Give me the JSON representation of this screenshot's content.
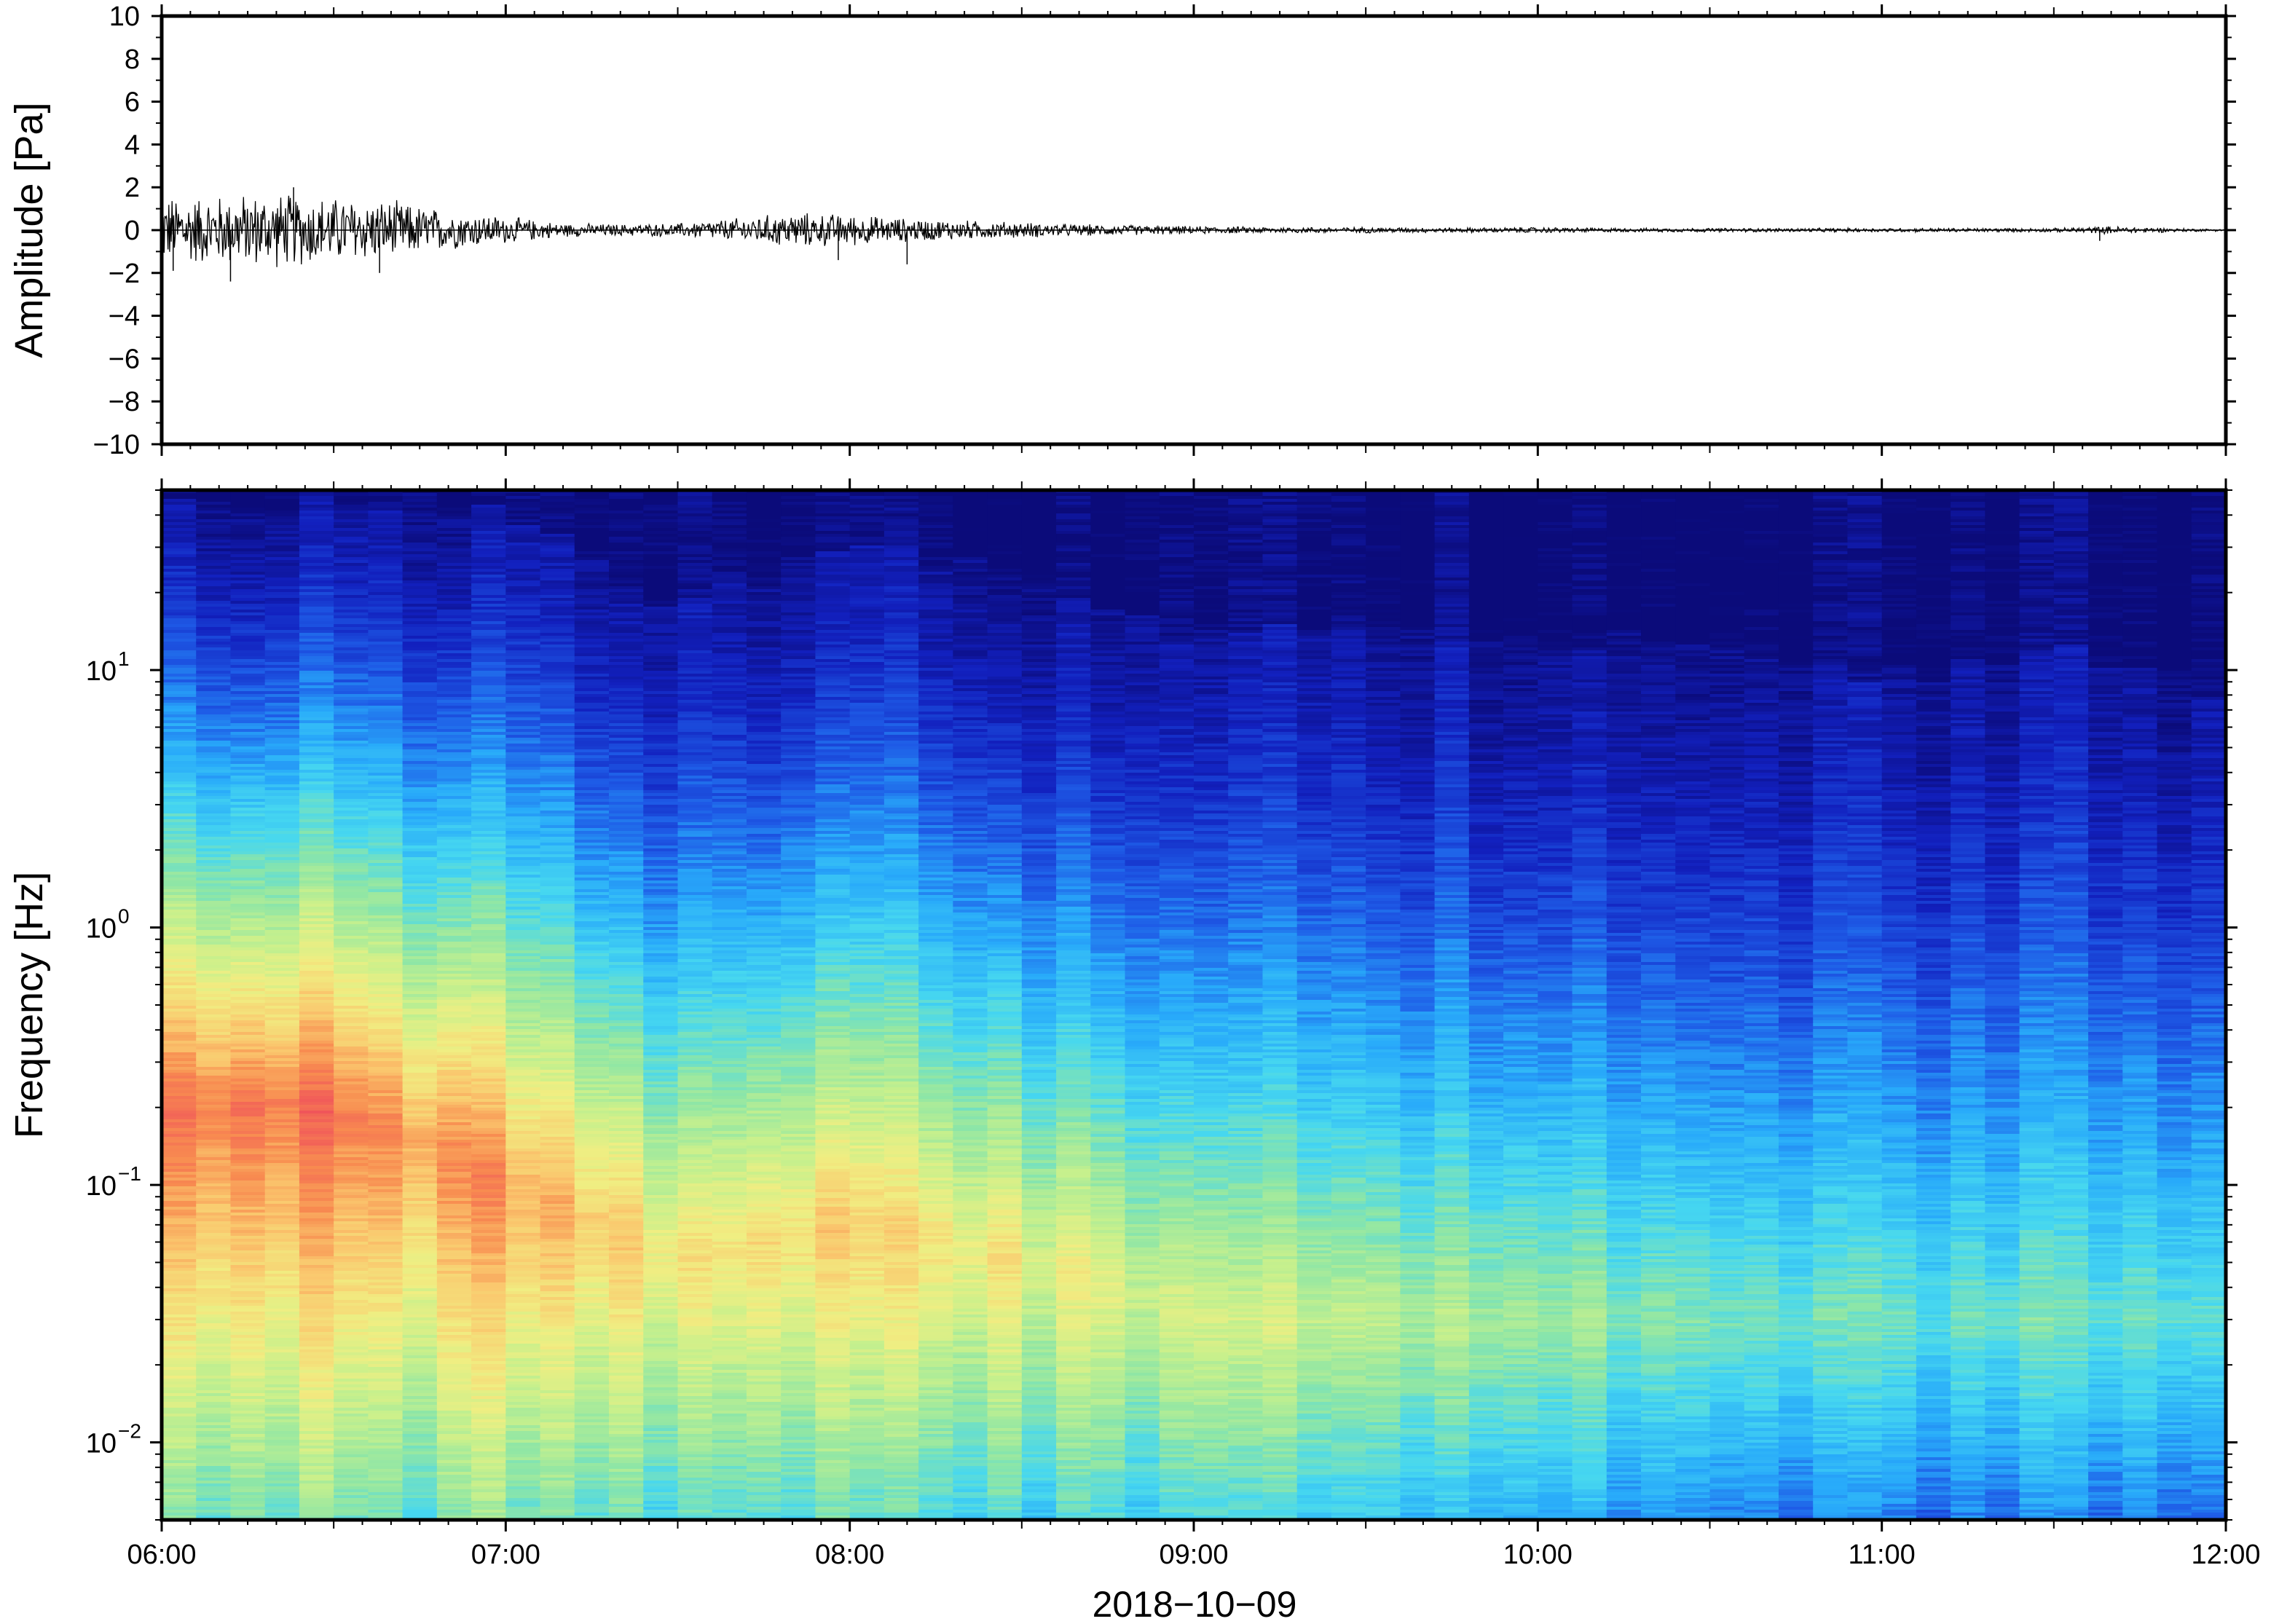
{
  "chart_data": [
    {
      "type": "line",
      "ylabel": "Amplitude [Pa]",
      "ylim": [
        -10,
        10
      ],
      "yticks": [
        "10",
        "8",
        "6",
        "4",
        "2",
        "0",
        "−2",
        "−4",
        "−6",
        "−8",
        "−10"
      ],
      "ytick_values": [
        10,
        8,
        6,
        4,
        2,
        0,
        -2,
        -4,
        -6,
        -8,
        -10
      ],
      "xlim": [
        "06:00",
        "12:00"
      ],
      "grid": false,
      "series": [
        {
          "envelope": {
            "x": [
              "06:00",
              "06:10",
              "06:20",
              "06:30",
              "06:40",
              "06:50",
              "07:00",
              "07:10",
              "07:20",
              "07:30",
              "07:40",
              "07:50",
              "08:00",
              "08:10",
              "08:20",
              "08:30",
              "08:40",
              "08:50",
              "09:00",
              "09:15",
              "09:30",
              "09:45",
              "10:00",
              "10:15",
              "10:30",
              "10:45",
              "11:00",
              "11:15",
              "11:30",
              "11:40",
              "11:50",
              "12:00"
            ],
            "amplitude_pa": [
              1.7,
              1.8,
              1.9,
              1.7,
              1.5,
              1.0,
              0.7,
              0.35,
              0.3,
              0.35,
              0.6,
              0.9,
              0.8,
              0.6,
              0.5,
              0.4,
              0.3,
              0.25,
              0.2,
              0.15,
              0.15,
              0.12,
              0.15,
              0.1,
              0.1,
              0.1,
              0.1,
              0.1,
              0.1,
              0.2,
              0.1,
              0.05
            ]
          },
          "peaks": [
            {
              "x": "06:02",
              "y": -1.9
            },
            {
              "x": "06:12",
              "y": -2.4
            },
            {
              "x": "06:23",
              "y": 2.0
            },
            {
              "x": "06:38",
              "y": -2.0
            },
            {
              "x": "07:58",
              "y": -1.4
            },
            {
              "x": "08:10",
              "y": -1.6
            },
            {
              "x": "11:38",
              "y": -0.5
            }
          ]
        }
      ]
    },
    {
      "type": "heatmap",
      "ylabel": "Frequency [Hz]",
      "xlabel": "2018−10−09",
      "y_scale": "log",
      "ylim_hz": [
        0.005,
        50
      ],
      "yticks": [
        {
          "base": "10",
          "exp": "−2",
          "value": 0.01
        },
        {
          "base": "10",
          "exp": "−1",
          "value": 0.1
        },
        {
          "base": "10",
          "exp": "0",
          "value": 1
        },
        {
          "base": "10",
          "exp": "1",
          "value": 10
        }
      ],
      "xticks": [
        "06:00",
        "07:00",
        "08:00",
        "09:00",
        "10:00",
        "11:00",
        "12:00"
      ],
      "xlim": [
        "06:00",
        "12:00"
      ],
      "colormap": "rainbow (dark blue → cyan → green → yellow → orange → red)",
      "colors": {
        "low": "#0b0b7a",
        "mid": "#8ee6a6",
        "high": "#f0555a"
      },
      "columns": 60,
      "upper_edge_hz": {
        "x": [
          "06:00",
          "06:30",
          "07:00",
          "07:15",
          "07:30",
          "08:00",
          "08:30",
          "09:00",
          "09:30",
          "10:00",
          "10:30",
          "11:00",
          "11:30",
          "12:00"
        ],
        "hz": [
          45,
          45,
          44,
          25,
          18,
          32,
          22,
          13,
          15,
          13,
          14,
          9,
          12,
          8
        ]
      },
      "peak_power_band": {
        "x": [
          "06:00",
          "06:30",
          "07:00",
          "07:30",
          "08:00",
          "08:30",
          "09:00",
          "09:30",
          "10:00",
          "10:30",
          "11:00",
          "11:30",
          "12:00"
        ],
        "hz": [
          0.2,
          0.2,
          0.1,
          0.05,
          0.07,
          0.05,
          0.03,
          0.03,
          0.03,
          0.03,
          0.03,
          0.03,
          0.03
        ],
        "relative_level": [
          1.0,
          0.95,
          0.85,
          0.72,
          0.8,
          0.72,
          0.62,
          0.6,
          0.55,
          0.5,
          0.48,
          0.46,
          0.45
        ]
      }
    }
  ]
}
